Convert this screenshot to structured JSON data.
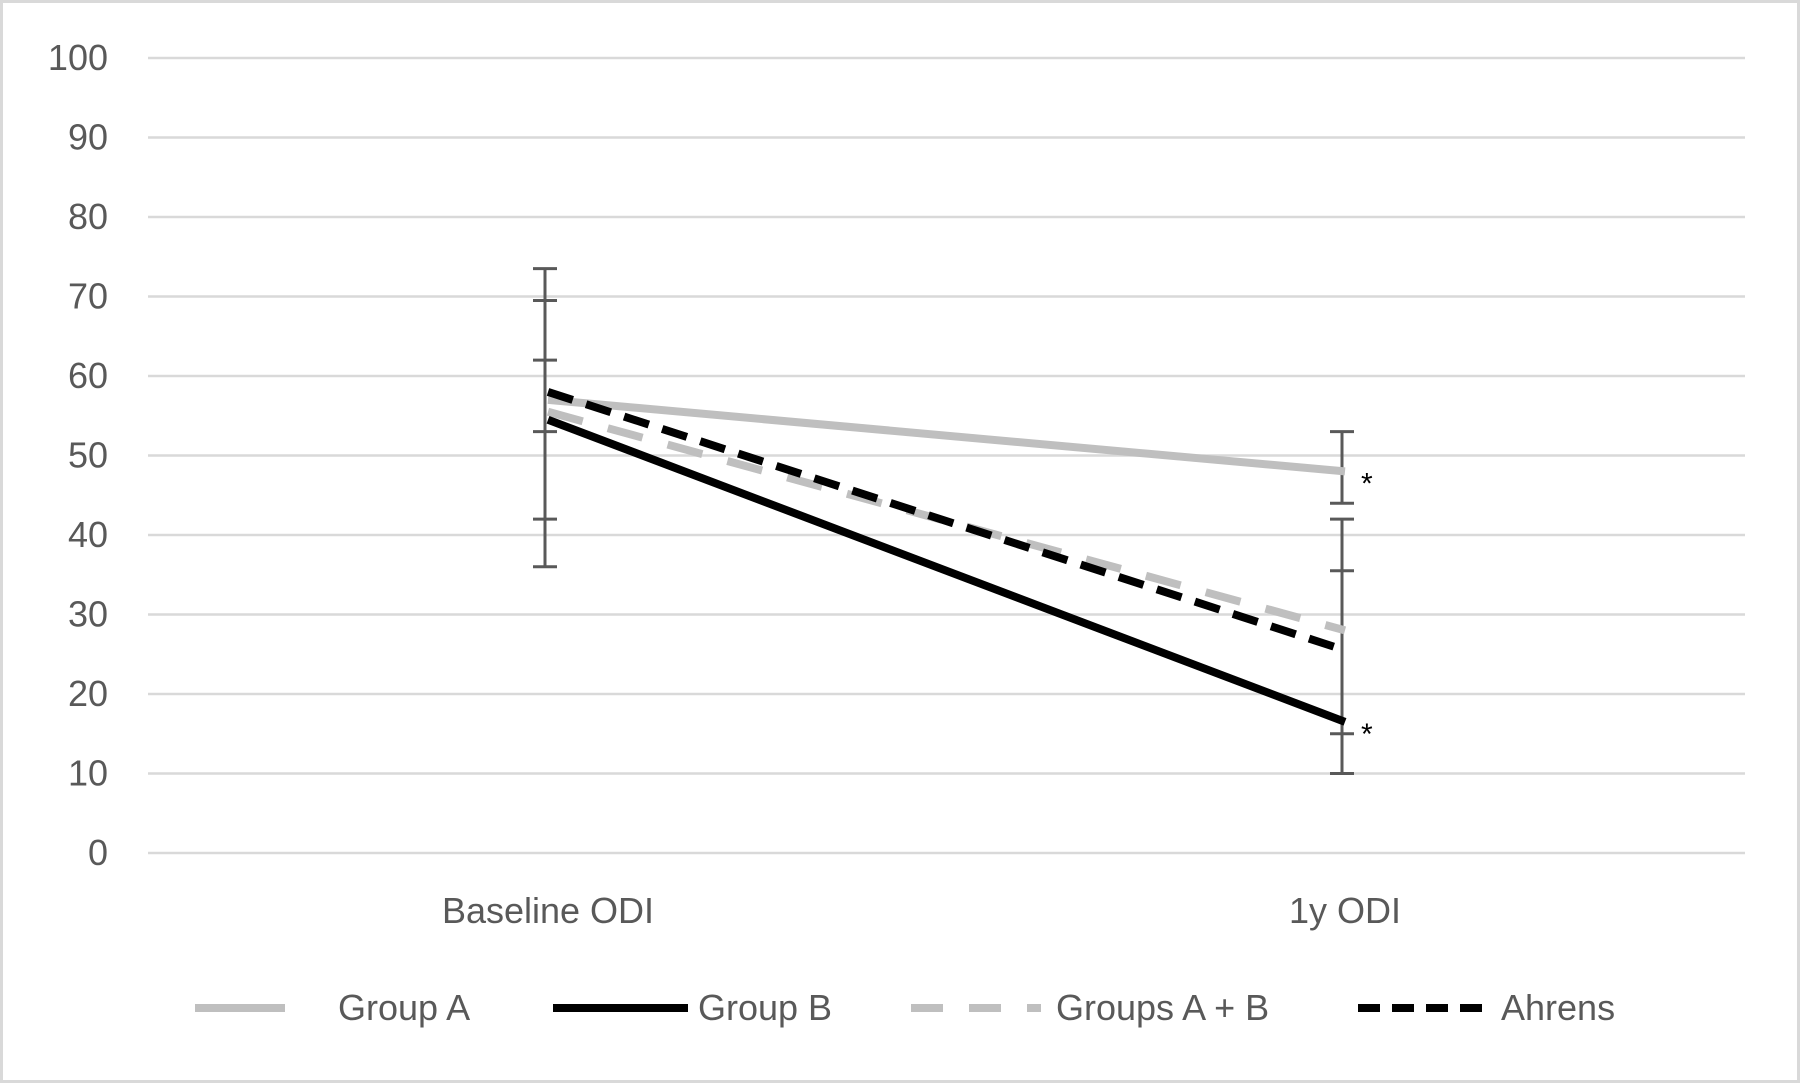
{
  "chart_data": {
    "type": "line",
    "title": "",
    "xlabel": "",
    "ylabel": "",
    "categories": [
      "Baseline ODI",
      "1y ODI"
    ],
    "ylim": [
      0,
      100
    ],
    "yticks": [
      0,
      10,
      20,
      30,
      40,
      50,
      60,
      70,
      80,
      90,
      100
    ],
    "grid": true,
    "legend_position": "bottom",
    "series": [
      {
        "name": "Group A",
        "values": [
          57,
          48
        ],
        "color": "#bfbfbf",
        "dash": "solid",
        "error_bars": [
          [
            53,
            62
          ],
          [
            44,
            53
          ]
        ]
      },
      {
        "name": "Group B",
        "values": [
          54.5,
          16.5
        ],
        "color": "#000000",
        "dash": "solid",
        "error_bars": [
          [
            36,
            73.5
          ],
          [
            15,
            42
          ]
        ]
      },
      {
        "name": "Groups A + B",
        "values": [
          55.5,
          28
        ],
        "color": "#bfbfbf",
        "dash": "dashed",
        "error_bars": [
          [
            42,
            69.5
          ],
          [
            10,
            35.5
          ]
        ]
      },
      {
        "name": "Ahrens",
        "values": [
          58,
          25.5
        ],
        "color": "#000000",
        "dash": "dashed",
        "error_bars": []
      }
    ],
    "annotations": [
      {
        "text": "*",
        "category": "1y ODI",
        "y": 48
      },
      {
        "text": "*",
        "category": "1y ODI",
        "y": 16.5
      }
    ]
  }
}
